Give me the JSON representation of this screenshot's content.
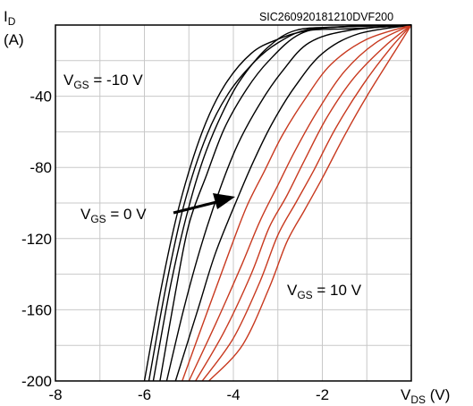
{
  "chart_data": {
    "type": "line",
    "title": "",
    "watermark": "SIC260920181210DVF200",
    "ylabel": {
      "main": "I",
      "sub": "D",
      "unit": "(A)"
    },
    "xlabel": {
      "main": "V",
      "sub": "DS",
      "unit": " (V)"
    },
    "xlim": [
      -8,
      0
    ],
    "ylim": [
      -200,
      0
    ],
    "x_ticks": [
      {
        "v": -8,
        "label": "-8"
      },
      {
        "v": -6,
        "label": "-6"
      },
      {
        "v": -4,
        "label": "-4"
      },
      {
        "v": -2,
        "label": "-2"
      }
    ],
    "y_ticks": [
      {
        "v": -40,
        "label": "-40"
      },
      {
        "v": -80,
        "label": "-80"
      },
      {
        "v": -120,
        "label": "-120"
      },
      {
        "v": -160,
        "label": "-160"
      },
      {
        "v": -200,
        "label": "-200"
      }
    ],
    "grid": true,
    "grid_step_x": 1,
    "grid_step_y": 20,
    "series_colors": {
      "negative_vgs": "#000000",
      "positive_vgs": "#c8391f"
    },
    "series": [
      {
        "group": "negative_vgs",
        "points": [
          [
            0,
            0
          ],
          [
            -1.3,
            -2
          ],
          [
            -2.3,
            -3
          ],
          [
            -3.0,
            -8
          ],
          [
            -3.6,
            -16
          ],
          [
            -4.2,
            -34
          ],
          [
            -4.7,
            -60
          ],
          [
            -5.2,
            -100
          ],
          [
            -5.6,
            -145
          ],
          [
            -6.0,
            -200
          ]
        ]
      },
      {
        "group": "negative_vgs",
        "points": [
          [
            0,
            0
          ],
          [
            -1.5,
            -1
          ],
          [
            -2.4,
            -3
          ],
          [
            -3.0,
            -10
          ],
          [
            -3.5,
            -20
          ],
          [
            -4.1,
            -38
          ],
          [
            -4.6,
            -62
          ],
          [
            -5.1,
            -100
          ],
          [
            -5.5,
            -145
          ],
          [
            -5.9,
            -200
          ]
        ]
      },
      {
        "group": "negative_vgs",
        "points": [
          [
            0,
            0
          ],
          [
            -1.6,
            -1
          ],
          [
            -2.6,
            -3
          ],
          [
            -3.2,
            -12
          ],
          [
            -3.7,
            -26
          ],
          [
            -4.1,
            -42
          ],
          [
            -4.6,
            -70
          ],
          [
            -5.0,
            -102
          ],
          [
            -5.4,
            -145
          ],
          [
            -5.8,
            -200
          ]
        ]
      },
      {
        "group": "negative_vgs",
        "points": [
          [
            0,
            0
          ],
          [
            -1.6,
            -1
          ],
          [
            -2.5,
            -5
          ],
          [
            -3.2,
            -20
          ],
          [
            -3.7,
            -36
          ],
          [
            -4.2,
            -58
          ],
          [
            -4.6,
            -84
          ],
          [
            -5.0,
            -112
          ],
          [
            -5.3,
            -150
          ],
          [
            -5.65,
            -200
          ]
        ]
      },
      {
        "group": "negative_vgs",
        "points": [
          [
            0,
            0
          ],
          [
            -1.4,
            -3
          ],
          [
            -2.3,
            -10
          ],
          [
            -2.9,
            -26
          ],
          [
            -3.4,
            -44
          ],
          [
            -3.9,
            -67
          ],
          [
            -4.3,
            -92
          ],
          [
            -4.7,
            -122
          ],
          [
            -5.1,
            -158
          ],
          [
            -5.5,
            -200
          ]
        ]
      },
      {
        "group": "negative_vgs",
        "points": [
          [
            0,
            0
          ],
          [
            -1.2,
            -5
          ],
          [
            -2.0,
            -16
          ],
          [
            -2.6,
            -34
          ],
          [
            -3.1,
            -54
          ],
          [
            -3.5,
            -74
          ],
          [
            -3.9,
            -97
          ],
          [
            -4.4,
            -128
          ],
          [
            -4.8,
            -160
          ],
          [
            -5.3,
            -200
          ]
        ]
      },
      {
        "group": "positive_vgs",
        "points": [
          [
            0,
            0
          ],
          [
            -1.0,
            -8
          ],
          [
            -1.8,
            -22
          ],
          [
            -2.4,
            -42
          ],
          [
            -2.9,
            -62
          ],
          [
            -3.3,
            -82
          ],
          [
            -3.7,
            -102
          ],
          [
            -4.1,
            -128
          ],
          [
            -4.6,
            -162
          ],
          [
            -5.15,
            -200
          ]
        ]
      },
      {
        "group": "positive_vgs",
        "points": [
          [
            0,
            0
          ],
          [
            -0.8,
            -10
          ],
          [
            -1.5,
            -26
          ],
          [
            -2.1,
            -48
          ],
          [
            -2.6,
            -70
          ],
          [
            -3.0,
            -90
          ],
          [
            -3.4,
            -110
          ],
          [
            -3.8,
            -134
          ],
          [
            -4.4,
            -168
          ],
          [
            -5.0,
            -200
          ]
        ]
      },
      {
        "group": "positive_vgs",
        "points": [
          [
            0,
            0
          ],
          [
            -0.6,
            -12
          ],
          [
            -1.3,
            -30
          ],
          [
            -1.9,
            -52
          ],
          [
            -2.4,
            -76
          ],
          [
            -2.8,
            -96
          ],
          [
            -3.2,
            -114
          ],
          [
            -3.6,
            -140
          ],
          [
            -4.2,
            -172
          ],
          [
            -4.85,
            -200
          ]
        ]
      },
      {
        "group": "positive_vgs",
        "points": [
          [
            0,
            0
          ],
          [
            -0.5,
            -14
          ],
          [
            -1.1,
            -34
          ],
          [
            -1.7,
            -58
          ],
          [
            -2.2,
            -82
          ],
          [
            -2.6,
            -100
          ],
          [
            -3.0,
            -118
          ],
          [
            -3.4,
            -144
          ],
          [
            -4.0,
            -176
          ],
          [
            -4.7,
            -200
          ]
        ]
      },
      {
        "group": "positive_vgs",
        "points": [
          [
            0,
            0
          ],
          [
            -0.4,
            -16
          ],
          [
            -1.0,
            -40
          ],
          [
            -1.5,
            -62
          ],
          [
            -2.0,
            -86
          ],
          [
            -2.4,
            -104
          ],
          [
            -2.8,
            -122
          ],
          [
            -3.2,
            -148
          ],
          [
            -3.8,
            -180
          ],
          [
            -4.55,
            -200
          ]
        ]
      }
    ],
    "annotations": [
      {
        "id": "vgs-neg10",
        "main": "V",
        "sub": "GS",
        "rest": " = -10 V"
      },
      {
        "id": "vgs-0",
        "main": "V",
        "sub": "GS",
        "rest": " = 0 V"
      },
      {
        "id": "vgs-pos10",
        "main": "V",
        "sub": "GS",
        "rest": " = 10 V"
      }
    ]
  }
}
